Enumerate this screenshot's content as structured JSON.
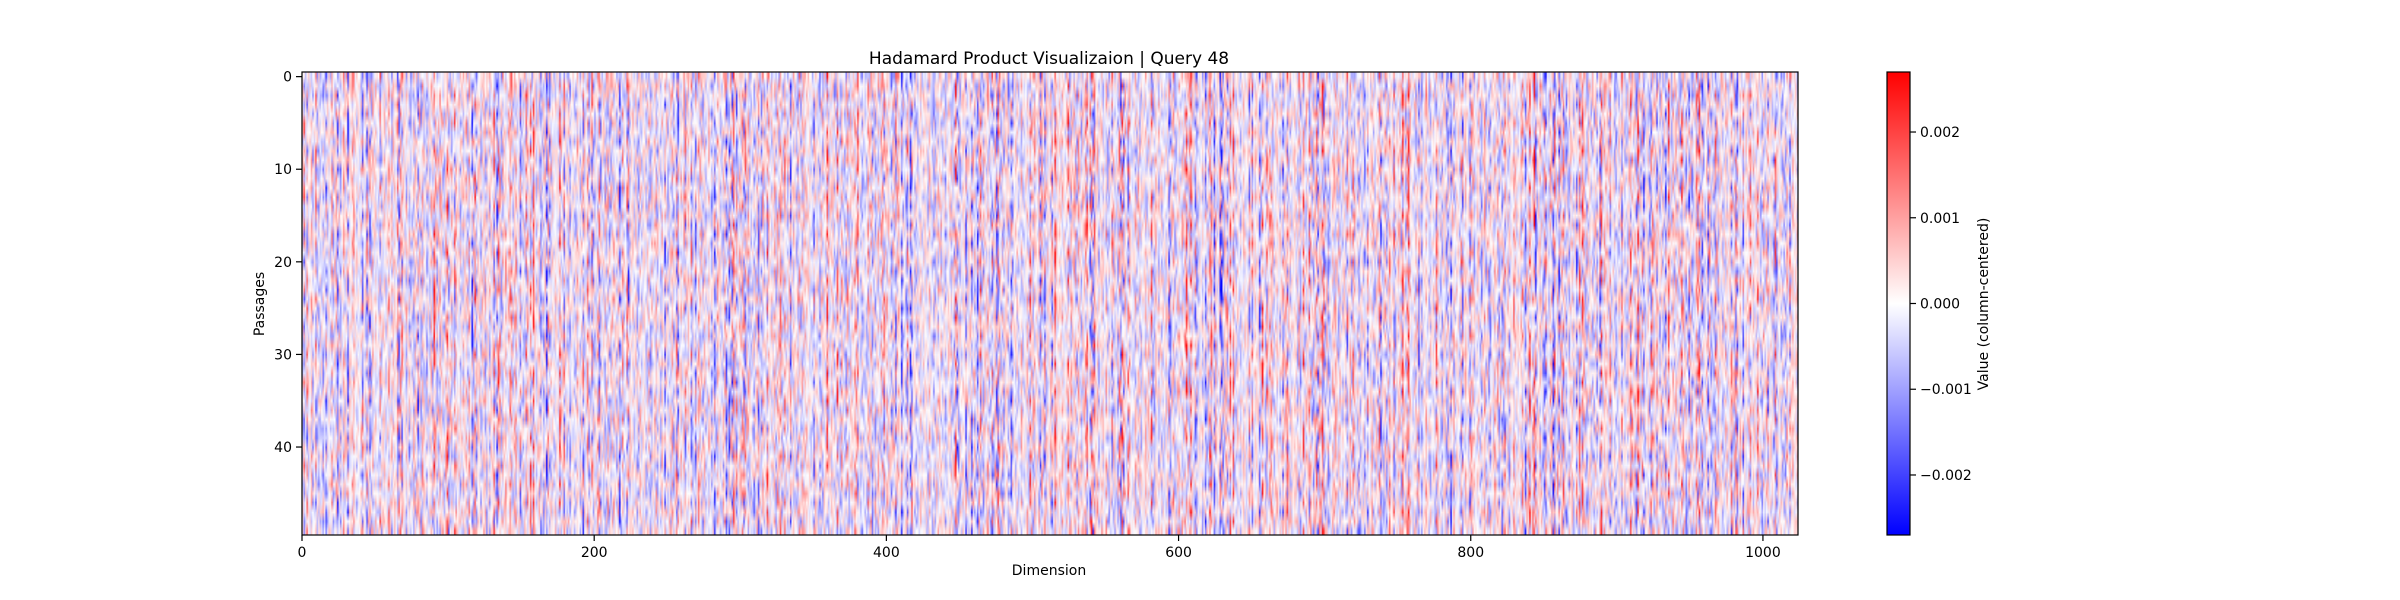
{
  "chart_data": {
    "type": "heatmap",
    "title": "Hadamard Product Visualizaion | Query 48",
    "xlabel": "Dimension",
    "ylabel": "Passages",
    "x_range": [
      0,
      1024
    ],
    "y_range": [
      0,
      50
    ],
    "x_ticks": [
      0,
      200,
      400,
      600,
      800,
      1000
    ],
    "x_tick_labels": [
      "0",
      "200",
      "400",
      "600",
      "800",
      "1000"
    ],
    "y_ticks": [
      0,
      10,
      20,
      30,
      40
    ],
    "y_tick_labels": [
      "0",
      "10",
      "20",
      "30",
      "40"
    ],
    "n_rows": 50,
    "n_cols": 1024,
    "colormap": "bwr",
    "value_range": [
      -0.0027,
      0.0027
    ],
    "colorbar": {
      "label": "Value (column-centered)",
      "ticks": [
        0.002,
        0.001,
        0.0,
        -0.001,
        -0.002
      ],
      "tick_labels": [
        "0.002",
        "0.001",
        "0.000",
        "−0.001",
        "−0.002"
      ]
    },
    "colors": {
      "negative": "#0000ff",
      "zero": "#ffffff",
      "positive": "#ff0000"
    }
  }
}
